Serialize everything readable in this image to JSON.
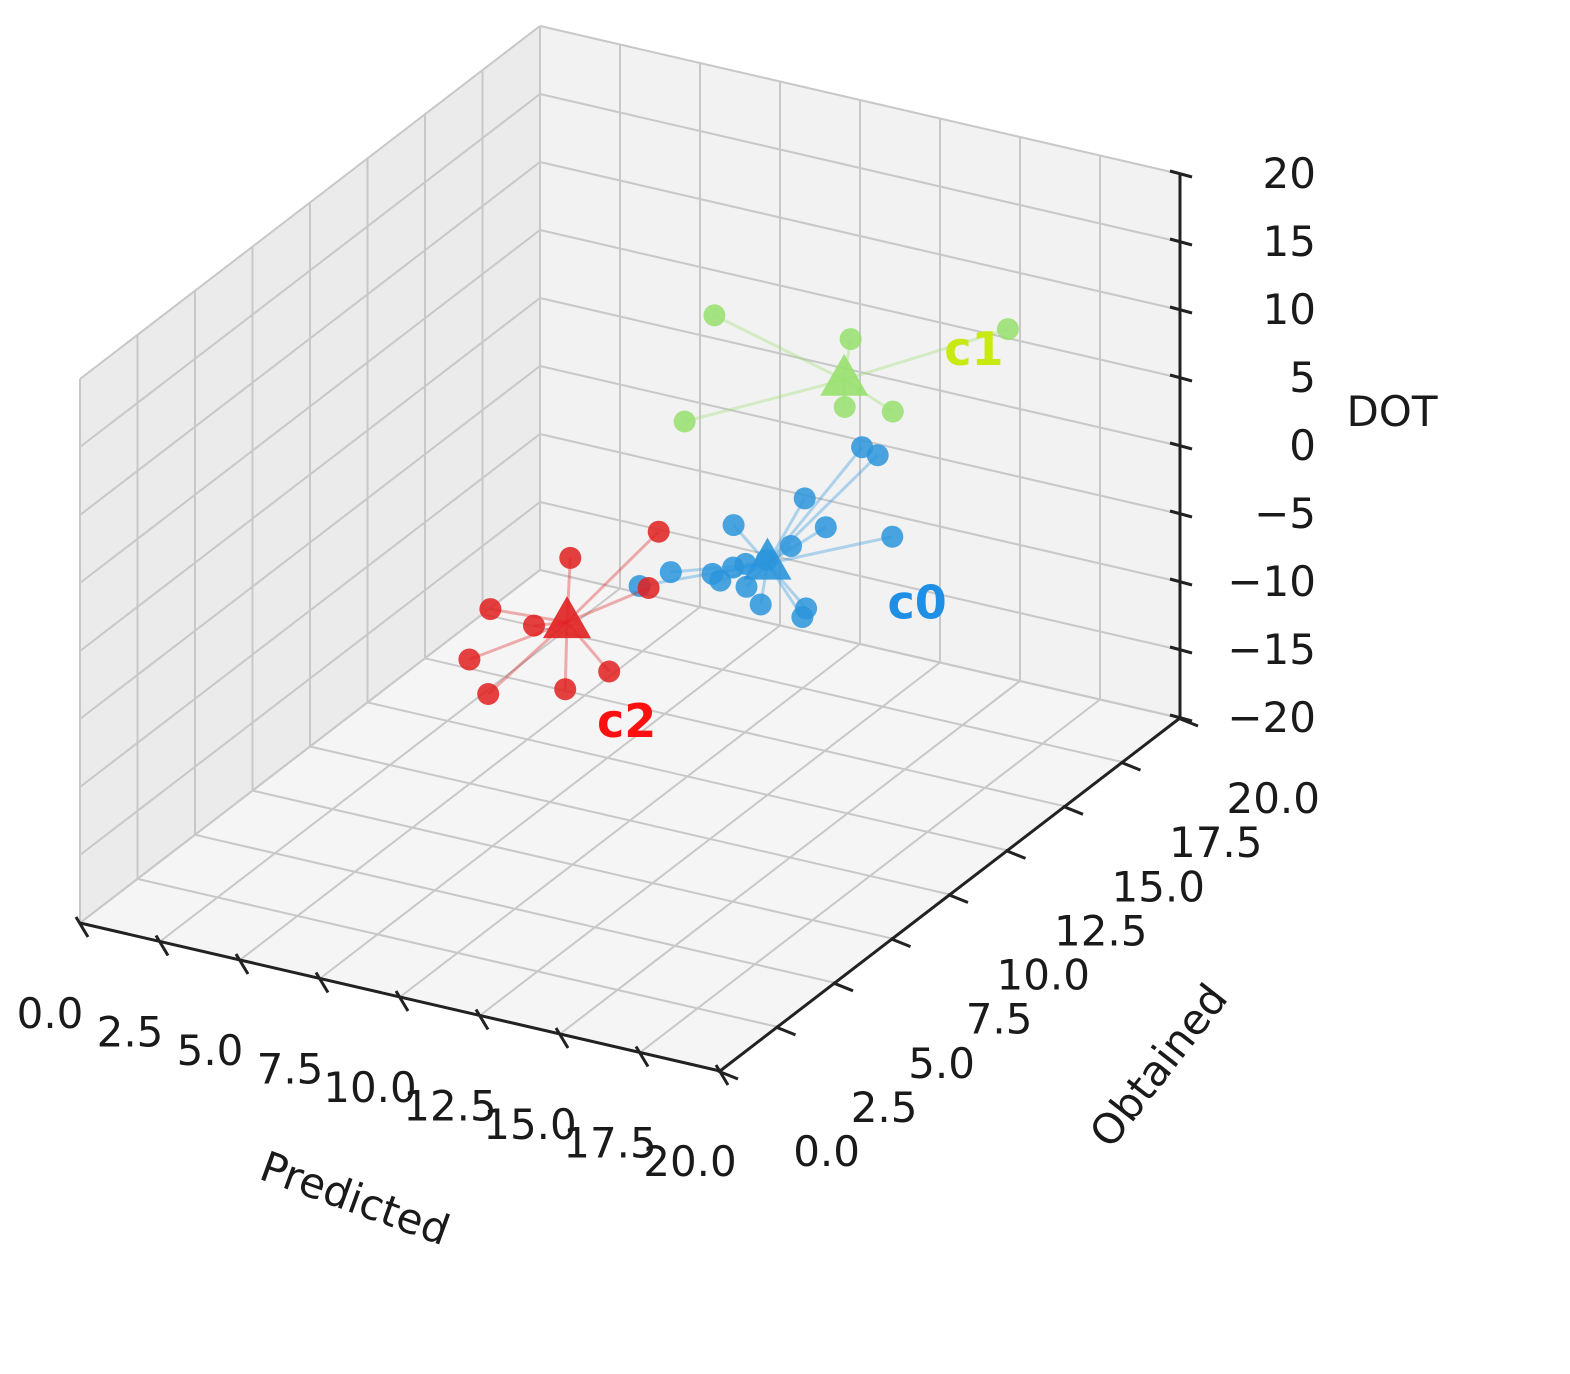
{
  "chart_data": {
    "type": "scatter3d",
    "title": "",
    "xlabel": "Predicted",
    "ylabel": "Obtained",
    "zlabel": "DOT",
    "xlim": [
      0,
      20
    ],
    "ylim": [
      0,
      20
    ],
    "zlim": [
      -20,
      20
    ],
    "x_ticks": [
      "0.0",
      "2.5",
      "5.0",
      "7.5",
      "10.0",
      "12.5",
      "15.0",
      "17.5",
      "20.0"
    ],
    "y_ticks": [
      "0.0",
      "2.5",
      "5.0",
      "7.5",
      "10.0",
      "12.5",
      "15.0",
      "17.5",
      "20.0"
    ],
    "z_ticks": [
      "−20",
      "−15",
      "−10",
      "−5",
      "0",
      "5",
      "10",
      "15",
      "20"
    ],
    "grid": true,
    "clusters": [
      {
        "name": "c0",
        "color": "#2b95dc",
        "centroid": [
          10.2,
          15.7,
          -8.4
        ],
        "points": [
          [
            8.0,
            13.2,
            -8.0
          ],
          [
            8.4,
            14.0,
            -7.8
          ],
          [
            9.2,
            14.7,
            -8.4
          ],
          [
            9.3,
            14.9,
            -9.1
          ],
          [
            9.5,
            15.2,
            -5.3
          ],
          [
            9.2,
            15.6,
            -9.1
          ],
          [
            10.5,
            16.9,
            -5.0
          ],
          [
            9.3,
            16.0,
            -9.3
          ],
          [
            9.6,
            16.5,
            -9.5
          ],
          [
            10.0,
            17.0,
            -8.9
          ],
          [
            9.4,
            15.9,
            -10.8
          ],
          [
            9.7,
            16.1,
            -12.2
          ],
          [
            10.8,
            17.4,
            -7.6
          ],
          [
            10.5,
            16.8,
            -13.6
          ],
          [
            11.0,
            18.7,
            -3.3
          ],
          [
            11.2,
            19.1,
            -4.3
          ],
          [
            11.8,
            18.9,
            -9.7
          ],
          [
            10.4,
            17.1,
            -13.4
          ]
        ]
      },
      {
        "name": "c1",
        "color": "#98e06e",
        "centroid": [
          10.8,
          18.2,
          2.2
        ],
        "points": [
          [
            8.4,
            14.6,
            2.5
          ],
          [
            8.9,
            15.2,
            9.8
          ],
          [
            11.6,
            19.2,
            -1.0
          ],
          [
            11.0,
            18.2,
            5.3
          ],
          [
            10.6,
            18.5,
            -0.3
          ],
          [
            13.4,
            21.7,
            2.8
          ]
        ]
      },
      {
        "name": "c2",
        "color": "#e02020",
        "centroid": [
          7.6,
          10.6,
          -7.5
        ],
        "points": [
          [
            6.5,
            8.8,
            -4.8
          ],
          [
            5.7,
            9.0,
            -9.2
          ],
          [
            6.0,
            9.4,
            -12.1
          ],
          [
            7.0,
            10.0,
            -7.3
          ],
          [
            7.2,
            11.3,
            -3.9
          ],
          [
            9.1,
            12.5,
            -2.5
          ],
          [
            8.2,
            11.6,
            -12.1
          ],
          [
            7.4,
            10.8,
            -12.8
          ],
          [
            9.0,
            12.2,
            -6.3
          ]
        ]
      }
    ],
    "label_colors": {
      "c0": "#1f8fe6",
      "c1": "#c8ea10",
      "c2": "#ff1010"
    }
  }
}
